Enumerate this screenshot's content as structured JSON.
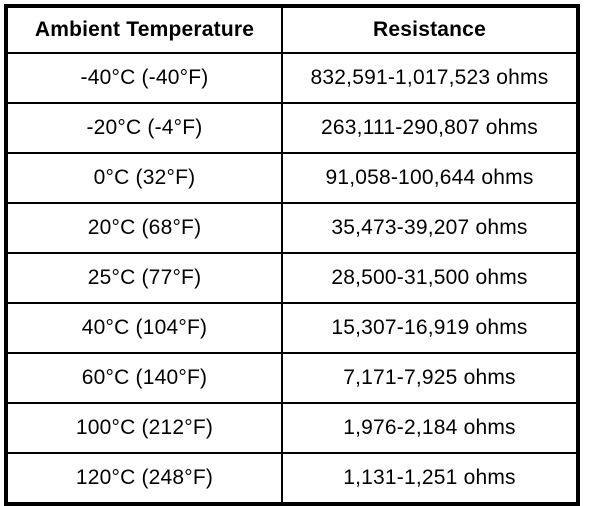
{
  "table": {
    "headers": {
      "temperature": "Ambient Temperature",
      "resistance": "Resistance"
    },
    "rows": [
      {
        "temperature": "-40°C (-40°F)",
        "resistance": "832,591-1,017,523 ohms"
      },
      {
        "temperature": "-20°C (-4°F)",
        "resistance": "263,111-290,807 ohms"
      },
      {
        "temperature": "0°C (32°F)",
        "resistance": "91,058-100,644 ohms"
      },
      {
        "temperature": "20°C (68°F)",
        "resistance": "35,473-39,207 ohms"
      },
      {
        "temperature": "25°C (77°F)",
        "resistance": "28,500-31,500 ohms"
      },
      {
        "temperature": "40°C (104°F)",
        "resistance": "15,307-16,919 ohms"
      },
      {
        "temperature": "60°C (140°F)",
        "resistance": "7,171-7,925 ohms"
      },
      {
        "temperature": "100°C (212°F)",
        "resistance": "1,976-2,184 ohms"
      },
      {
        "temperature": "120°C (248°F)",
        "resistance": "1,131-1,251 ohms"
      }
    ],
    "colors": {
      "border": "#000000",
      "text": "#000000",
      "background": "#ffffff"
    }
  }
}
